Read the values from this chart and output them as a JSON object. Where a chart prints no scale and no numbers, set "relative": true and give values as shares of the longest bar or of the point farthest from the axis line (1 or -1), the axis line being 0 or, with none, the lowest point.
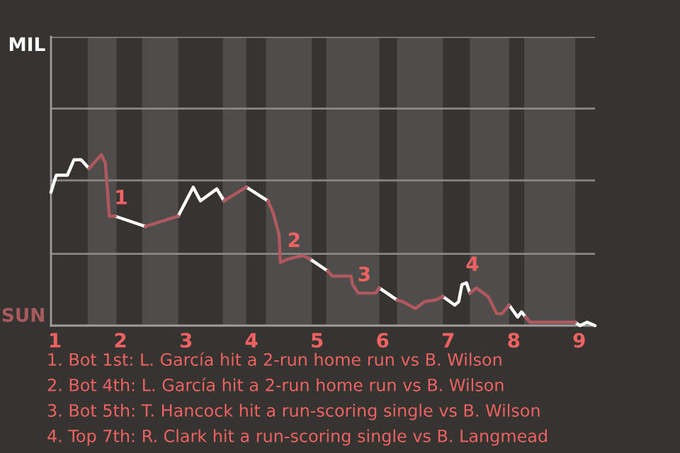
{
  "chart_data": {
    "type": "line",
    "relative": true,
    "series": [
      {
        "color": "#ffffff",
        "x": [
          0.94,
          1.02,
          1.19,
          1.29,
          1.4,
          1.52,
          null,
          1.92,
          2.38,
          null,
          2.88,
          3.11,
          3.22,
          3.47,
          3.58,
          null,
          3.92,
          4.25,
          null,
          4.89,
          5.16,
          null,
          5.95,
          6.22,
          null,
          6.92,
          7.1,
          7.16,
          7.21,
          7.28,
          7.33,
          null,
          7.93,
          8.06,
          8.12,
          8.18
        ],
        "values": [
          0.78,
          0.88,
          0.88,
          0.97,
          0.97,
          0.92,
          null,
          0.64,
          0.58,
          null,
          0.64,
          0.81,
          0.73,
          0.8,
          0.73,
          null,
          0.81,
          0.73,
          null,
          0.39,
          0.32,
          null,
          0.22,
          0.15,
          null,
          0.17,
          0.12,
          0.14,
          0.24,
          0.25,
          0.19,
          null,
          0.12,
          0.05,
          0.08,
          0.05
        ]
      },
      {
        "color": "#ffffff",
        "x": [
          8.94,
          9.01,
          9.12,
          9.24
        ],
        "values": [
          0.02,
          0,
          0.02,
          0
        ]
      },
      {
        "color": "#b0585e",
        "x": [
          1.52,
          1.71,
          1.77,
          1.83,
          1.92,
          null,
          2.38,
          2.88,
          null,
          3.58,
          3.92,
          null,
          4.25,
          4.33,
          4.42,
          4.44,
          4.56,
          4.78,
          4.89,
          null,
          5.16,
          5.23,
          5.52,
          5.54,
          5.63,
          5.89,
          5.95,
          null,
          6.22,
          6.31,
          6.5,
          6.64,
          6.81,
          6.92,
          null,
          7.33,
          7.43,
          7.61,
          7.74,
          7.82,
          7.93,
          null,
          8.18,
          8.25,
          8.31,
          8.94
        ],
        "values": [
          0.92,
          1,
          0.95,
          0.64,
          0.64,
          null,
          0.58,
          0.64,
          null,
          0.73,
          0.81,
          null,
          0.73,
          0.66,
          0.53,
          0.37,
          0.39,
          0.41,
          0.39,
          null,
          0.32,
          0.29,
          0.29,
          0.24,
          0.19,
          0.19,
          0.22,
          null,
          0.15,
          0.14,
          0.1,
          0.14,
          0.15,
          0.17,
          null,
          0.19,
          0.22,
          0.17,
          0.07,
          0.07,
          0.12,
          null,
          0.05,
          0.02,
          0.02,
          0.02
        ]
      }
    ],
    "xlim": [
      0.94,
      9.24
    ],
    "xticks": [
      1,
      2,
      3,
      4,
      5,
      6,
      7,
      8,
      9
    ],
    "ref_lines": [
      {
        "axis": "y",
        "value": 0.42,
        "color": "#8a8886"
      },
      {
        "axis": "y",
        "value": 0.85,
        "color": "#8a8886"
      },
      {
        "axis": "y",
        "value": 1.27,
        "color": "#8a8886"
      },
      {
        "axis": "y",
        "value": 1.69,
        "color": "#8a8886"
      }
    ],
    "bands": [
      {
        "axis": "x",
        "from": 1.5,
        "to": 1.94,
        "color": "#4e4d4b"
      },
      {
        "axis": "x",
        "from": 2.33,
        "to": 2.88,
        "color": "#4e4d4b"
      },
      {
        "axis": "x",
        "from": 3.56,
        "to": 3.92,
        "color": "#4e4d4b"
      },
      {
        "axis": "x",
        "from": 4.22,
        "to": 4.92,
        "color": "#4e4d4b"
      },
      {
        "axis": "x",
        "from": 5.14,
        "to": 5.95,
        "color": "#4e4d4b"
      },
      {
        "axis": "x",
        "from": 6.22,
        "to": 6.92,
        "color": "#4e4d4b"
      },
      {
        "axis": "x",
        "from": 7.33,
        "to": 7.93,
        "color": "#4e4d4b"
      },
      {
        "axis": "x",
        "from": 8.16,
        "to": 8.94,
        "color": "#4e4d4b"
      }
    ],
    "annotations": [
      {
        "text": "1",
        "x": 1.92,
        "y": 0.64
      },
      {
        "text": "2",
        "x": 4.56,
        "y": 0.39
      },
      {
        "text": "3",
        "x": 5.63,
        "y": 0.19
      },
      {
        "text": "4",
        "x": 7.28,
        "y": 0.25
      },
      "MIL",
      "SUN",
      "1. Bot 1st: L. García hit a 2-run home run vs B. Wilson",
      "2. Bot 4th: L. García hit a 2-run home run vs B. Wilson",
      "3. Bot 5th: T. Hancock hit a run-scoring single vs B. Wilson",
      "4. Top 7th: R. Clark hit a run-scoring single vs B. Langmead"
    ]
  }
}
